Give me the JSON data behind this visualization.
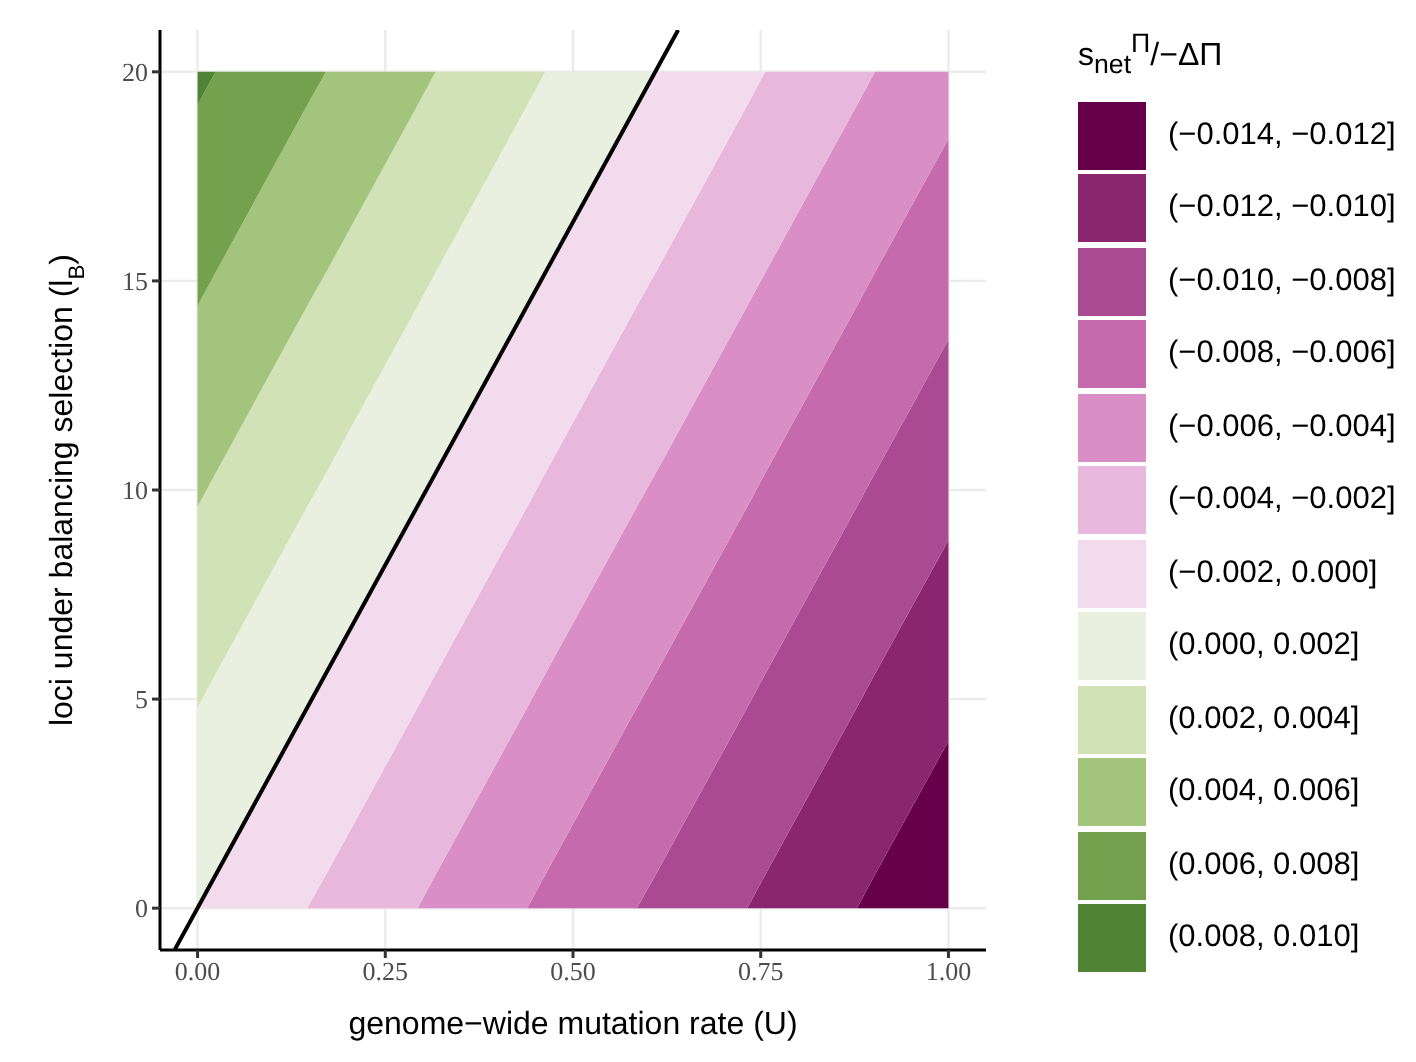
{
  "chart_data": {
    "type": "area",
    "stacked": true,
    "xlabel": "genome−wide mutation rate (U)",
    "ylabel": "loci under balancing selection (l$_{B}$)",
    "legend_title": "s$_{net}$$^{Π}$/−ΔΠ",
    "legend": "right",
    "grid": true,
    "xlim": [
      -0.05,
      1.05
    ],
    "ylim": [
      -1,
      21
    ],
    "xticks": [
      {
        "value": 0,
        "label": "0.00"
      },
      {
        "value": 0.25,
        "label": "0.25"
      },
      {
        "value": 0.5,
        "label": "0.50"
      },
      {
        "value": 0.75,
        "label": "0.75"
      },
      {
        "value": 1,
        "label": "1.00"
      }
    ],
    "yticks": [
      0,
      5,
      10,
      15,
      20
    ],
    "x": [
      0,
      0.024,
      0.146,
      0.171,
      0.293,
      0.317,
      0.439,
      0.463,
      0.585,
      0.61,
      0.732,
      0.756,
      0.878,
      0.902,
      1
    ],
    "series": [
      {
        "name": "(−0.014, −0.012]",
        "color": "#67004a",
        "values": [
          null,
          null,
          null,
          null,
          null,
          null,
          null,
          null,
          null,
          null,
          null,
          null,
          0,
          0.8,
          4.0
        ]
      },
      {
        "name": "(−0.012, −0.010]",
        "color": "#8a266f",
        "values": [
          null,
          null,
          null,
          null,
          null,
          null,
          null,
          null,
          null,
          null,
          0,
          0.8,
          4.8,
          4.8,
          4.8
        ]
      },
      {
        "name": "(−0.010, −0.008]",
        "color": "#a94a92",
        "values": [
          null,
          null,
          null,
          null,
          null,
          null,
          null,
          null,
          0,
          0.8,
          4.8,
          4.8,
          4.8,
          4.8,
          4.8
        ]
      },
      {
        "name": "(−0.008, −0.006]",
        "color": "#c56aad",
        "values": [
          null,
          null,
          null,
          null,
          null,
          null,
          0,
          0.8,
          4.8,
          4.8,
          4.8,
          4.8,
          4.8,
          4.8,
          4.8
        ]
      },
      {
        "name": "(−0.006, −0.004]",
        "color": "#d98ec6",
        "values": [
          null,
          null,
          null,
          null,
          0,
          0.8,
          4.8,
          4.8,
          4.8,
          4.8,
          4.8,
          4.8,
          4.8,
          4.8,
          1.6
        ]
      },
      {
        "name": "(−0.004, −0.002]",
        "color": "#e8b8dc",
        "values": [
          null,
          null,
          0,
          0.8,
          4.8,
          4.8,
          4.8,
          4.8,
          4.8,
          4.8,
          4.8,
          4.8,
          0.8,
          0,
          null
        ]
      },
      {
        "name": "(−0.002, 0.000]",
        "color": "#f2dbec",
        "values": [
          0,
          0.8,
          4.8,
          4.8,
          4.8,
          4.8,
          4.8,
          4.8,
          4.8,
          4.8,
          0.8,
          0,
          null,
          null,
          null
        ]
      },
      {
        "name": "(0.000, 0.002]",
        "color": "#eaf0df",
        "values": [
          4.8,
          4.8,
          4.8,
          4.8,
          4.8,
          4.8,
          4.8,
          4.8,
          0.8,
          0,
          null,
          null,
          null,
          null,
          null
        ]
      },
      {
        "name": "(0.002, 0.004]",
        "color": "#d0e2b6",
        "values": [
          4.8,
          4.8,
          4.8,
          4.8,
          4.8,
          4.8,
          0.8,
          0,
          null,
          null,
          null,
          null,
          null,
          null,
          null
        ]
      },
      {
        "name": "(0.004, 0.006]",
        "color": "#a2c47c",
        "values": [
          4.8,
          4.8,
          4.8,
          4.8,
          0.8,
          0,
          null,
          null,
          null,
          null,
          null,
          null,
          null,
          null,
          null
        ]
      },
      {
        "name": "(0.006, 0.008]",
        "color": "#74a14e",
        "values": [
          4.8,
          4.8,
          0.8,
          0,
          null,
          null,
          null,
          null,
          null,
          null,
          null,
          null,
          null,
          null,
          null
        ]
      },
      {
        "name": "(0.008, 0.010]",
        "color": "#4e8434",
        "values": [
          0.8,
          0,
          null,
          null,
          null,
          null,
          null,
          null,
          null,
          null,
          null,
          null,
          null,
          null,
          null
        ]
      },
      {
        "type": "line",
        "color": "#000000",
        "x": [
          -0.03,
          0.64
        ],
        "values": [
          -0.98,
          21
        ]
      }
    ]
  }
}
